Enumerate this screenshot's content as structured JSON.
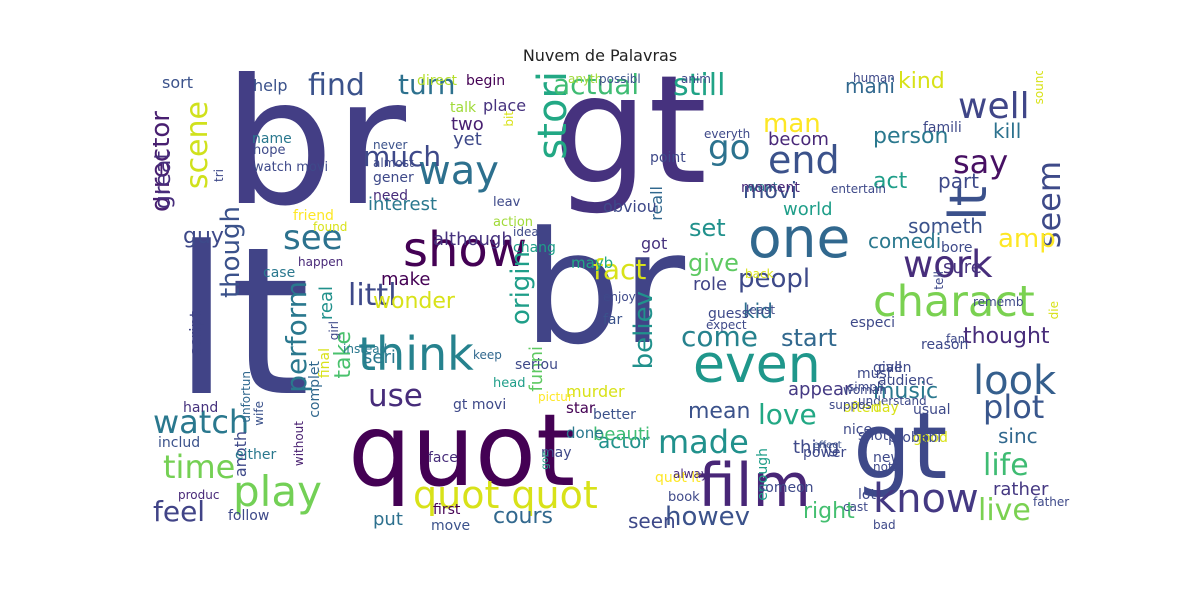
{
  "title": "Nuvem de Palavras",
  "words": [
    {
      "text": "br",
      "color": "#433e85"
    },
    {
      "text": "gt",
      "color": "#46327e"
    },
    {
      "text": "lt",
      "color": "#414487"
    },
    {
      "text": "br",
      "color": "#414487"
    },
    {
      "text": "quot",
      "color": "#440154"
    },
    {
      "text": "lt",
      "color": "#3b518b"
    },
    {
      "text": "gt",
      "color": "#3e4989"
    },
    {
      "text": "film",
      "color": "#482677"
    },
    {
      "text": "one",
      "color": "#31688e"
    },
    {
      "text": "even",
      "color": "#1f978b"
    },
    {
      "text": "charact",
      "color": "#7ad151"
    },
    {
      "text": "show",
      "color": "#440154"
    },
    {
      "text": "think",
      "color": "#26828e"
    },
    {
      "text": "play",
      "color": "#73d056"
    },
    {
      "text": "quot quot",
      "color": "#d8e219"
    },
    {
      "text": "know",
      "color": "#443983"
    },
    {
      "text": "look",
      "color": "#355f8d"
    },
    {
      "text": "work",
      "color": "#472d7b"
    },
    {
      "text": "way",
      "color": "#2d708e"
    },
    {
      "text": "stori",
      "color": "#22a884"
    },
    {
      "text": "end",
      "color": "#3b528b"
    },
    {
      "text": "well",
      "color": "#404688"
    },
    {
      "text": "see",
      "color": "#2c728e"
    },
    {
      "text": "made",
      "color": "#21918c"
    },
    {
      "text": "time",
      "color": "#75d054"
    },
    {
      "text": "watch",
      "color": "#2a788e"
    },
    {
      "text": "use",
      "color": "#472c7a"
    },
    {
      "text": "littl",
      "color": "#3e4989"
    },
    {
      "text": "go",
      "color": "#2c728e"
    },
    {
      "text": "say",
      "color": "#471063"
    },
    {
      "text": "plot",
      "color": "#39568c"
    },
    {
      "text": "life",
      "color": "#3fbc73"
    },
    {
      "text": "live",
      "color": "#7ad151"
    },
    {
      "text": "love",
      "color": "#22a884"
    },
    {
      "text": "peopl",
      "color": "#3e4a89"
    },
    {
      "text": "fact",
      "color": "#d8e219"
    },
    {
      "text": "actual",
      "color": "#3fbc73"
    },
    {
      "text": "still",
      "color": "#20a386"
    },
    {
      "text": "turn",
      "color": "#2d718e"
    },
    {
      "text": "find",
      "color": "#3b528b"
    },
    {
      "text": "much",
      "color": "#3e4989"
    },
    {
      "text": "come",
      "color": "#26828e"
    },
    {
      "text": "seem",
      "color": "#3e4a89"
    },
    {
      "text": "amp",
      "color": "#fde725"
    },
    {
      "text": "believ",
      "color": "#21918c"
    },
    {
      "text": "howev",
      "color": "#3b528b"
    },
    {
      "text": "feel",
      "color": "#414487"
    },
    {
      "text": "director",
      "color": "#481f70"
    },
    {
      "text": "scene",
      "color": "#d0e11c"
    },
    {
      "text": "perform",
      "color": "#2a788e"
    },
    {
      "text": "though",
      "color": "#3b528b"
    },
    {
      "text": "origin",
      "color": "#1f9e89"
    },
    {
      "text": "cours",
      "color": "#31688e"
    },
    {
      "text": "seen",
      "color": "#3e4989"
    },
    {
      "text": "right",
      "color": "#44bf70"
    },
    {
      "text": "kind",
      "color": "#d8e219"
    },
    {
      "text": "mani",
      "color": "#31688e"
    },
    {
      "text": "man",
      "color": "#fde725"
    },
    {
      "text": "person",
      "color": "#2a788e"
    },
    {
      "text": "kill",
      "color": "#2c728e"
    },
    {
      "text": "part",
      "color": "#3e4989"
    },
    {
      "text": "act",
      "color": "#1f9e89"
    },
    {
      "text": "movi",
      "color": "#3b528b"
    },
    {
      "text": "becom",
      "color": "#482878"
    },
    {
      "text": "world",
      "color": "#1f9e89"
    },
    {
      "text": "set",
      "color": "#21918c"
    },
    {
      "text": "give",
      "color": "#5ec962"
    },
    {
      "text": "start",
      "color": "#31688e"
    },
    {
      "text": "kid",
      "color": "#2e6e8e"
    },
    {
      "text": "thought",
      "color": "#472c7a"
    },
    {
      "text": "someth",
      "color": "#3b528b"
    },
    {
      "text": "comedi",
      "color": "#2a788e"
    },
    {
      "text": "role",
      "color": "#414487"
    },
    {
      "text": "sure",
      "color": "#46327e"
    },
    {
      "text": "music",
      "color": "#2a788e"
    },
    {
      "text": "appear",
      "color": "#443983"
    },
    {
      "text": "mean",
      "color": "#3b528b"
    },
    {
      "text": "sinc",
      "color": "#31688e"
    },
    {
      "text": "actor",
      "color": "#21918c"
    },
    {
      "text": "thing",
      "color": "#3e4989"
    },
    {
      "text": "take",
      "color": "#4ac16d"
    },
    {
      "text": "funni",
      "color": "#5ec962"
    },
    {
      "text": "beauti",
      "color": "#3fbc73"
    },
    {
      "text": "put",
      "color": "#2d708e"
    },
    {
      "text": "rather",
      "color": "#453882"
    },
    {
      "text": "great",
      "color": "#472d7b"
    },
    {
      "text": "guy",
      "color": "#3e4989"
    },
    {
      "text": "wonder",
      "color": "#d8e219"
    },
    {
      "text": "seri",
      "color": "#2a788e"
    },
    {
      "text": "make",
      "color": "#440154"
    },
    {
      "text": "although",
      "color": "#46327e"
    },
    {
      "text": "interest",
      "color": "#2a788e"
    },
    {
      "text": "reall",
      "color": "#31688e"
    },
    {
      "text": "yet",
      "color": "#3e4989"
    },
    {
      "text": "two",
      "color": "#481f70"
    },
    {
      "text": "real",
      "color": "#21918c"
    },
    {
      "text": "help",
      "color": "#3b528b"
    },
    {
      "text": "script",
      "color": "#414487"
    },
    {
      "text": "anoth",
      "color": "#3e4989"
    },
    {
      "text": "hand",
      "color": "#46327e"
    },
    {
      "text": "includ",
      "color": "#3b528b"
    },
    {
      "text": "either",
      "color": "#2a788e"
    },
    {
      "text": "produc",
      "color": "#482878"
    },
    {
      "text": "follow",
      "color": "#3e4989"
    },
    {
      "text": "move",
      "color": "#3b528b"
    },
    {
      "text": "first",
      "color": "#440154"
    },
    {
      "text": "quot lt",
      "color": "#fde725"
    },
    {
      "text": "book",
      "color": "#3e4989"
    },
    {
      "text": "alway",
      "color": "#482878"
    },
    {
      "text": "better",
      "color": "#3b528b"
    },
    {
      "text": "gt movi",
      "color": "#3e4989"
    },
    {
      "text": "face",
      "color": "#472c7a"
    },
    {
      "text": "without",
      "color": "#481f70"
    },
    {
      "text": "final",
      "color": "#d8e219"
    },
    {
      "text": "complet",
      "color": "#31688e"
    },
    {
      "text": "girl",
      "color": "#3e4989"
    },
    {
      "text": "instead",
      "color": "#2a788e"
    },
    {
      "text": "wife",
      "color": "#3b528b"
    },
    {
      "text": "unfortun",
      "color": "#31688e"
    },
    {
      "text": "case",
      "color": "#2a788e"
    },
    {
      "text": "happen",
      "color": "#482878"
    },
    {
      "text": "friend",
      "color": "#fde725"
    },
    {
      "text": "found",
      "color": "#d8e219"
    },
    {
      "text": "tri",
      "color": "#3e4989"
    },
    {
      "text": "watch movi",
      "color": "#3e4989"
    },
    {
      "text": "hope",
      "color": "#3e4989"
    },
    {
      "text": "name",
      "color": "#2a788e"
    },
    {
      "text": "sort",
      "color": "#3b528b"
    },
    {
      "text": "direct",
      "color": "#b5de2b"
    },
    {
      "text": "talk",
      "color": "#a0da39"
    },
    {
      "text": "never",
      "color": "#3b528b"
    },
    {
      "text": "almost",
      "color": "#3e4989"
    },
    {
      "text": "gener",
      "color": "#3e4989"
    },
    {
      "text": "need",
      "color": "#472c7a"
    },
    {
      "text": "begin",
      "color": "#440154"
    },
    {
      "text": "place",
      "color": "#46327e"
    },
    {
      "text": "bit",
      "color": "#d8e219"
    },
    {
      "text": "leav",
      "color": "#3e4989"
    },
    {
      "text": "action",
      "color": "#a0da39"
    },
    {
      "text": "idea",
      "color": "#3e4989"
    },
    {
      "text": "chang",
      "color": "#1f9e89"
    },
    {
      "text": "enjoy",
      "color": "#3e4989"
    },
    {
      "text": "far",
      "color": "#3b528b"
    },
    {
      "text": "seriou",
      "color": "#3e4989"
    },
    {
      "text": "head",
      "color": "#1f9e89"
    },
    {
      "text": "keep",
      "color": "#31688e"
    },
    {
      "text": "pictur",
      "color": "#fde725"
    },
    {
      "text": "murder",
      "color": "#d8e219"
    },
    {
      "text": "star",
      "color": "#440154"
    },
    {
      "text": "done",
      "color": "#2a788e"
    },
    {
      "text": "may",
      "color": "#3e4989"
    },
    {
      "text": "goe",
      "color": "#1f9e89"
    },
    {
      "text": "guess",
      "color": "#3e4989"
    },
    {
      "text": "expect",
      "color": "#3e4989"
    },
    {
      "text": "enough",
      "color": "#1f9e89"
    },
    {
      "text": "mayb",
      "color": "#22a884"
    },
    {
      "text": "got",
      "color": "#46327e"
    },
    {
      "text": "obviou",
      "color": "#3e4989"
    },
    {
      "text": "point",
      "color": "#3e4989"
    },
    {
      "text": "anyth",
      "color": "#a0da39"
    },
    {
      "text": "possibl",
      "color": "#3b528b"
    },
    {
      "text": "anim",
      "color": "#3e4989"
    },
    {
      "text": "everyth",
      "color": "#3e4989"
    },
    {
      "text": "want",
      "color": "#2a788e"
    },
    {
      "text": "moment",
      "color": "#482878"
    },
    {
      "text": "back",
      "color": "#d8e219"
    },
    {
      "text": "least",
      "color": "#3e4989"
    },
    {
      "text": "especi",
      "color": "#3e4989"
    },
    {
      "text": "must",
      "color": "#3e4989"
    },
    {
      "text": "often",
      "color": "#d8e219"
    },
    {
      "text": "effect",
      "color": "#3b528b"
    },
    {
      "text": "power",
      "color": "#3e4989"
    },
    {
      "text": "audienc",
      "color": "#3e4989"
    },
    {
      "text": "simpli",
      "color": "#3e4989"
    },
    {
      "text": "woman",
      "color": "#3e4989"
    },
    {
      "text": "understand",
      "color": "#3e4989"
    },
    {
      "text": "nice",
      "color": "#3e4989"
    },
    {
      "text": "someon",
      "color": "#3e4989"
    },
    {
      "text": "lot",
      "color": "#3e4989"
    },
    {
      "text": "cast",
      "color": "#3e4989"
    },
    {
      "text": "bad",
      "color": "#3e4989"
    },
    {
      "text": "father",
      "color": "#3e4989"
    },
    {
      "text": "new",
      "color": "#3e4989"
    },
    {
      "text": "usual",
      "color": "#3e4989"
    },
    {
      "text": "good",
      "color": "#d8e219"
    },
    {
      "text": "shot",
      "color": "#3e4989"
    },
    {
      "text": "probabl",
      "color": "#3e4989"
    },
    {
      "text": "noth",
      "color": "#3e4989"
    },
    {
      "text": "call",
      "color": "#3e4989"
    },
    {
      "text": "reason",
      "color": "#3e4989"
    },
    {
      "text": "given",
      "color": "#3e4989"
    },
    {
      "text": "bore",
      "color": "#3e4989"
    },
    {
      "text": "day",
      "color": "#d8e219"
    },
    {
      "text": "suppos",
      "color": "#3e4989"
    },
    {
      "text": "entertain",
      "color": "#3e4989"
    },
    {
      "text": "famili",
      "color": "#3e4989"
    },
    {
      "text": "human",
      "color": "#3e4989"
    },
    {
      "text": "sound",
      "color": "#d8e219"
    },
    {
      "text": "fan",
      "color": "#3e4989"
    },
    {
      "text": "tell",
      "color": "#3e4989"
    },
    {
      "text": "rememb",
      "color": "#3e4989"
    },
    {
      "text": "die",
      "color": "#d8e219"
    }
  ]
}
